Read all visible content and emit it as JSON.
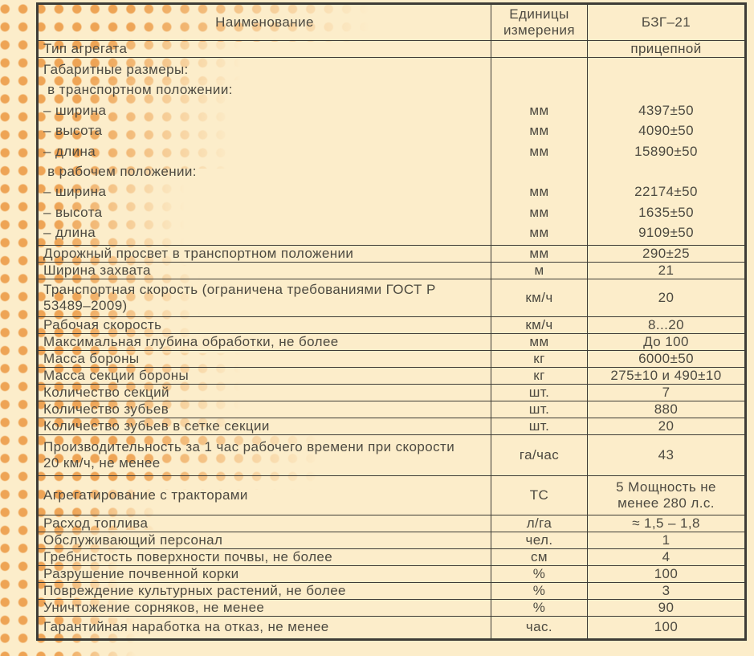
{
  "colors": {
    "background": "#fcedca",
    "dot_accent": "#eea455",
    "border": "#3d3c36",
    "text": "#4d4a41"
  },
  "table": {
    "header": {
      "name": "Наименование",
      "unit": "Единицы измерения",
      "model": "БЗГ–21"
    },
    "rows": [
      {
        "name": "Тип агрегата",
        "unit": "",
        "value": "прицепной"
      },
      {
        "sub": [
          {
            "name": "Габаритные размеры:",
            "unit": "",
            "value": ""
          },
          {
            "name": " в транспортном положении:",
            "unit": "",
            "value": ""
          },
          {
            "name": "– ширина",
            "unit": "мм",
            "value": "4397±50"
          },
          {
            "name": "– высота",
            "unit": "мм",
            "value": "4090±50"
          },
          {
            "name": "– длина",
            "unit": "мм",
            "value": "15890±50"
          },
          {
            "name": " в рабочем положении:",
            "unit": "",
            "value": ""
          },
          {
            "name": "– ширина",
            "unit": "мм",
            "value": "22174±50"
          },
          {
            "name": "– высота",
            "unit": "мм",
            "value": "1635±50"
          },
          {
            "name": "– длина",
            "unit": "мм",
            "value": "9109±50"
          }
        ]
      },
      {
        "name": "Дорожный просвет в транспортном положении",
        "unit": "мм",
        "value": "290±25"
      },
      {
        "name": "Ширина захвата",
        "unit": "м",
        "value": "21"
      },
      {
        "name": "Транспортная скорость (ограничена требованиями ГОСТ Р\n53489–2009)",
        "unit": "км/ч",
        "value": "20"
      },
      {
        "name": "Рабочая скорость",
        "unit": "км/ч",
        "value": "8...20"
      },
      {
        "name": "Максимальная глубина обработки, не более",
        "unit": "мм",
        "value": "До 100"
      },
      {
        "name": "Масса бороны",
        "unit": "кг",
        "value": "6000±50"
      },
      {
        "name": "Масса секции бороны",
        "unit": "кг",
        "value": "275±10 и 490±10"
      },
      {
        "name": "Количество секций",
        "unit": "шт.",
        "value": "7"
      },
      {
        "name": "Количество зубьев",
        "unit": "шт.",
        "value": "880"
      },
      {
        "name": "Количество зубьев в сетке секции",
        "unit": "шт.",
        "value": "20"
      },
      {
        "name": "Производительность за 1 час рабочего времени при скорости\n20 км/ч, не менее",
        "unit": "га/час",
        "value": "43"
      },
      {
        "name": "Агрегатирование с тракторами",
        "unit": "ТС",
        "value": "5 Мощность не\nменее 280 л.с."
      },
      {
        "name": "Расход топлива",
        "unit": "л/га",
        "value": "≈ 1,5 – 1,8"
      },
      {
        "name": "Обслуживающий персонал",
        "unit": "чел.",
        "value": "1"
      },
      {
        "name": "Гребнистость поверхности почвы, не более",
        "unit": "см",
        "value": "4"
      },
      {
        "name": "Разрушение почвенной корки",
        "unit": "%",
        "value": "100"
      },
      {
        "name": "Повреждение культурных растений, не более",
        "unit": "%",
        "value": "3"
      },
      {
        "name": "Уничтожение сорняков, не менее",
        "unit": "%",
        "value": "90"
      },
      {
        "name": "Гарантийная наработка на отказ, не менее",
        "unit": "час.",
        "value": "100"
      }
    ]
  }
}
